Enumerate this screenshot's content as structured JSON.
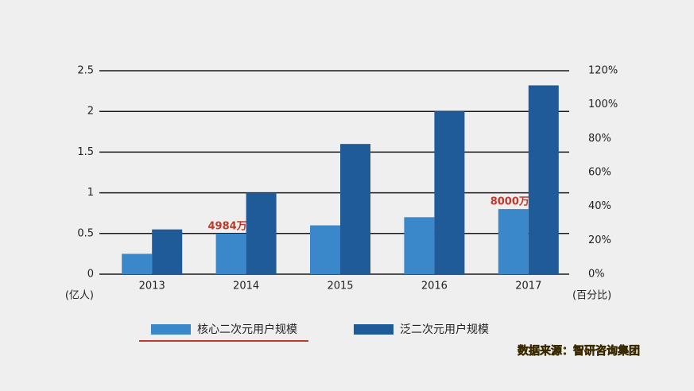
{
  "chart_data": {
    "type": "bar",
    "categories": [
      "2013",
      "2014",
      "2015",
      "2016",
      "2017"
    ],
    "series": [
      {
        "name": "核心二次元用户规模",
        "color": "#3a88c9",
        "values": [
          0.25,
          0.4984,
          0.6,
          0.7,
          0.8
        ],
        "value_labels": [
          null,
          "4984万人",
          null,
          null,
          "8000万人"
        ]
      },
      {
        "name": "泛二次元用户规模",
        "color": "#1f5a99",
        "values": [
          0.55,
          1.0,
          1.6,
          2.0,
          2.32
        ]
      }
    ],
    "ylim": [
      0,
      2.5
    ],
    "yticks": [
      0,
      0.5,
      1,
      1.5,
      2,
      2.5
    ],
    "y2lim": [
      0,
      120
    ],
    "y2ticks": [
      {
        "value": 0,
        "label": "0%"
      },
      {
        "value": 20,
        "label": "20%"
      },
      {
        "value": 40,
        "label": "40%"
      },
      {
        "value": 60,
        "label": "60%"
      },
      {
        "value": 80,
        "label": "80%"
      },
      {
        "value": 100,
        "label": "100%"
      },
      {
        "value": 120,
        "label": "120%"
      }
    ],
    "y_label": "(亿人)",
    "y2_label": "(百分比)",
    "source": "数据来源：智研咨询集团",
    "grid": true
  }
}
